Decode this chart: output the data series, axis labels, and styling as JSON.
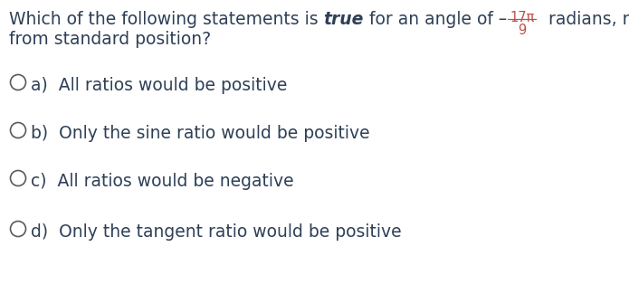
{
  "background_color": "#ffffff",
  "text_color": "#2e4057",
  "bold_word": "true",
  "fraction_color": "#c0504d",
  "fraction_numerator": "17π",
  "fraction_denominator": "9",
  "question_line2": "from standard position?",
  "options": [
    "a)  All ratios would be positive",
    "b)  Only the sine ratio would be positive",
    "c)  All ratios would be negative",
    "d)  Only the tangent ratio would be positive"
  ],
  "circle_color": "#5a5a5a",
  "font_size": 13.5,
  "option_font_size": 13.5,
  "fig_width": 6.95,
  "fig_height": 3.25,
  "dpi": 100
}
